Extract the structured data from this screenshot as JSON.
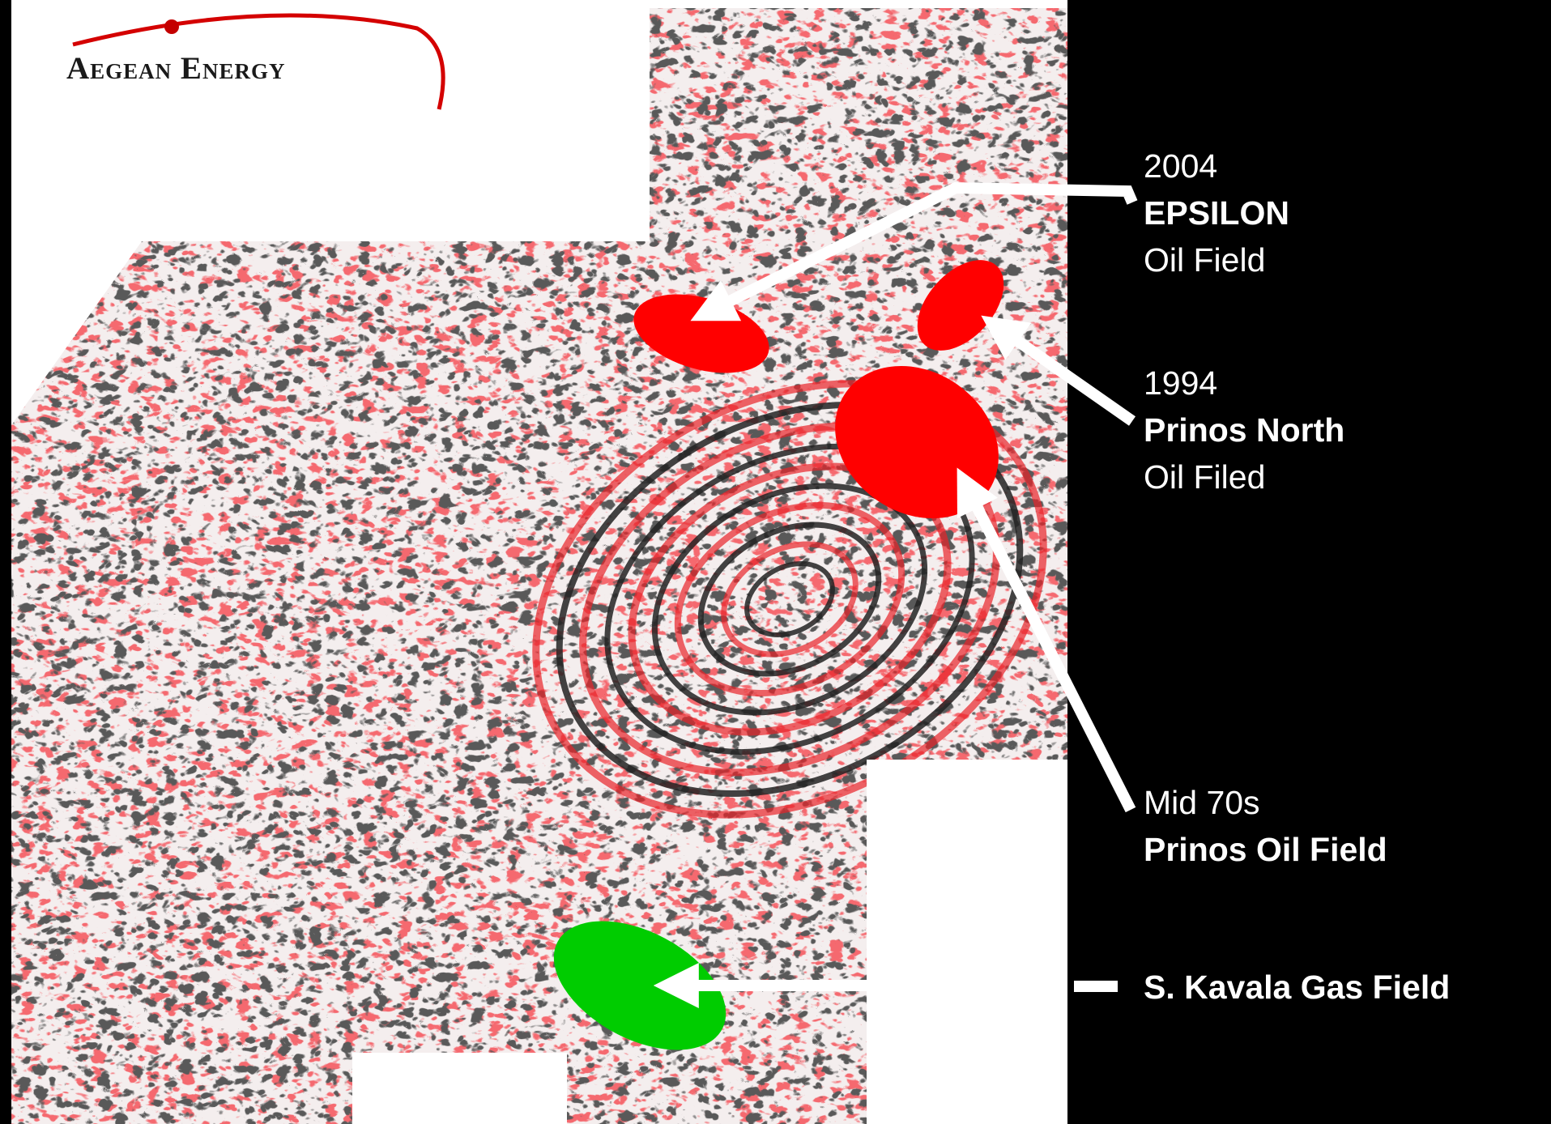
{
  "logo": {
    "text": "Aegean Energy",
    "accent_color": "#d40000"
  },
  "fields": [
    {
      "year": "2004",
      "name": "EPSILON",
      "type": "Oil Field",
      "marker_color": "#ff0000"
    },
    {
      "year": "1994",
      "name": "Prinos North",
      "type": "Oil Filed",
      "marker_color": "#ff0000"
    },
    {
      "year": "Mid 70s",
      "name": "Prinos Oil Field",
      "type": "",
      "marker_color": "#ff0000"
    },
    {
      "year": "",
      "name": "S. Kavala Gas Field",
      "type": "",
      "marker_color": "#00cc00"
    }
  ],
  "colors": {
    "seismic_red": "#e8242a",
    "seismic_dark": "#1c1c1c",
    "background": "#000000",
    "panel": "#ffffff"
  }
}
